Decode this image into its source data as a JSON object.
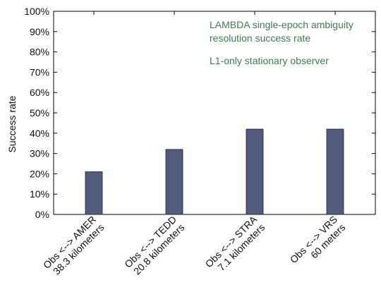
{
  "chart_data": {
    "type": "bar",
    "categories": [
      [
        "Obs <--> AMER",
        "38.3 kilometers"
      ],
      [
        "Obs <--> TEDD",
        "20.8 kilometers"
      ],
      [
        "Obs <--> STRA",
        "7.1 kilometers"
      ],
      [
        "Obs <--> VRS",
        "60 meters"
      ]
    ],
    "values": [
      21,
      32,
      42,
      42
    ],
    "title": "",
    "xlabel": "",
    "ylabel": "Success rate",
    "ylim": [
      0,
      100
    ],
    "yticks": [
      0,
      10,
      20,
      30,
      40,
      50,
      60,
      70,
      80,
      90,
      100
    ],
    "ytick_format": "%",
    "annotations": [
      [
        "LAMBDA single-epoch ambiguity",
        "resolution success rate"
      ],
      [
        "L1-only stationary observer"
      ]
    ],
    "bar_color": "#525a7e",
    "annotation_color": "#3f7b55",
    "grid": false,
    "legend": "none"
  }
}
